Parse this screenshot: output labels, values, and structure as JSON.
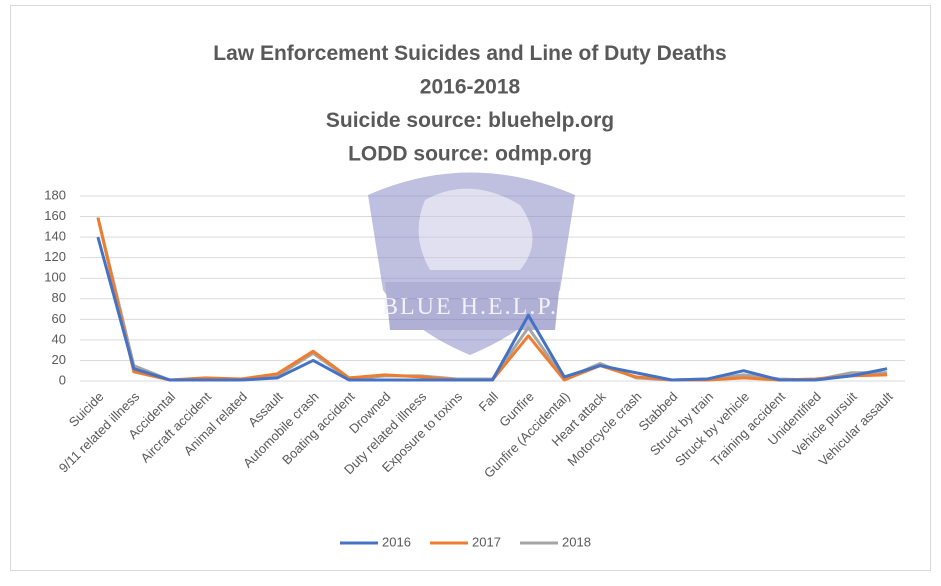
{
  "chart_data": {
    "type": "line",
    "title": [
      "Law Enforcement Suicides and Line of Duty Deaths",
      "2016-2018",
      "Suicide source: bluehelp.org",
      "LODD source: odmp.org"
    ],
    "watermark": "BLUE H.E.L.P.",
    "categories": [
      "Suicide",
      "9/11 related illness",
      "Accidental",
      "Aircraft accident",
      "Animal related",
      "Assault",
      "Automobile crash",
      "Boating accident",
      "Drowned",
      "Duty related illness",
      "Exposure to toxins",
      "Fall",
      "Gunfire",
      "Gunfire (Accidental)",
      "Heart attack",
      "Motorcycle crash",
      "Stabbed",
      "Struck by train",
      "Struck by vehicle",
      "Training accident",
      "Unidentified",
      "Vehicle pursuit",
      "Vehicular assault"
    ],
    "series": [
      {
        "name": "2016",
        "color": "#4472c4",
        "values": [
          140,
          12,
          1,
          1,
          1,
          3,
          20,
          1,
          1,
          1,
          1,
          1,
          64,
          4,
          15,
          8,
          1,
          2,
          10,
          1,
          1,
          5,
          12
        ]
      },
      {
        "name": "2017",
        "color": "#ed7d31",
        "values": [
          159,
          9,
          1,
          3,
          2,
          7,
          29,
          3,
          6,
          4,
          1,
          1,
          44,
          1,
          15,
          4,
          1,
          1,
          3,
          1,
          2,
          5,
          6
        ]
      },
      {
        "name": "2018",
        "color": "#a5a5a5",
        "values": [
          159,
          15,
          1,
          1,
          2,
          5,
          27,
          2,
          5,
          5,
          2,
          2,
          52,
          2,
          17,
          3,
          1,
          2,
          6,
          2,
          1,
          8,
          8
        ]
      }
    ],
    "ylim": [
      0,
      180
    ],
    "yticks": [
      0,
      20,
      40,
      60,
      80,
      100,
      120,
      140,
      160,
      180
    ],
    "grid": true,
    "legend": "bottom"
  }
}
